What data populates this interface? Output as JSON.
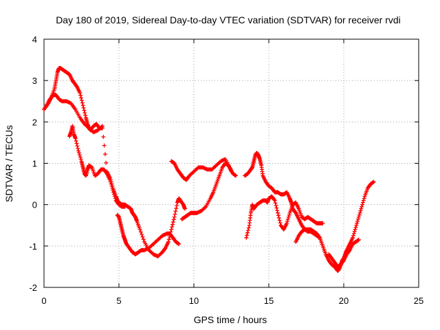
{
  "chart_data": {
    "type": "scatter",
    "title": "Day 180 of 2019, Sidereal Day-to-day VTEC variation (SDTVAR) for receiver rvdi",
    "xlabel": "GPS time / hours",
    "ylabel": "SDTVAR / TECUs",
    "xlim": [
      0,
      25
    ],
    "ylim": [
      -2,
      4
    ],
    "xticks": [
      0,
      5,
      10,
      15,
      20,
      25
    ],
    "yticks": [
      -2,
      -1,
      0,
      1,
      2,
      3,
      4
    ],
    "xtick_labels": [
      "0",
      "5",
      "10",
      "15",
      "20",
      "25"
    ],
    "ytick_labels": [
      "-2",
      "-1",
      "0",
      "1",
      "2",
      "3",
      "4"
    ],
    "grid": true,
    "marker": "+",
    "color": "#ff0000",
    "series": [
      {
        "name": "seg1",
        "x": [
          0.0,
          0.3,
          0.6,
          0.8,
          1.0,
          1.2,
          1.5,
          1.8,
          2.1,
          2.4,
          2.7,
          3.0,
          3.3,
          3.6,
          3.9
        ],
        "y": [
          2.3,
          2.5,
          2.65,
          2.65,
          2.55,
          2.5,
          2.5,
          2.45,
          2.3,
          2.1,
          1.95,
          1.85,
          1.75,
          1.8,
          1.9
        ]
      },
      {
        "name": "seg2",
        "x": [
          0.0,
          0.3,
          0.5,
          0.7,
          0.8,
          0.9,
          1.0,
          1.1,
          1.3,
          1.5,
          1.7,
          1.9,
          2.0,
          2.2,
          2.4,
          2.6,
          2.8,
          2.9,
          3.0,
          3.1,
          3.3,
          3.5,
          3.7,
          3.9,
          4.2,
          4.4,
          4.6,
          4.8,
          4.9,
          5.0,
          5.2,
          5.4,
          5.6,
          5.8,
          5.9,
          6.0,
          6.1,
          6.2,
          6.4,
          6.7,
          7.0,
          7.3,
          7.6,
          7.9,
          8.1,
          8.3,
          8.5,
          8.7,
          8.9,
          9.0,
          9.1,
          9.3,
          9.4
        ],
        "y": [
          2.3,
          2.45,
          2.6,
          2.8,
          3.0,
          3.2,
          3.3,
          3.3,
          3.25,
          3.2,
          3.15,
          3.0,
          2.95,
          2.85,
          2.7,
          2.4,
          2.1,
          1.95,
          1.85,
          1.8,
          1.9,
          1.95,
          1.85,
          1.85,
          0.8,
          0.65,
          0.4,
          0.2,
          0.1,
          0.05,
          0.0,
          0.0,
          -0.05,
          -0.1,
          -0.2,
          -0.25,
          -0.3,
          -0.4,
          -0.6,
          -0.9,
          -1.1,
          -1.2,
          -1.25,
          -1.15,
          -1.05,
          -0.9,
          -0.6,
          -0.3,
          0.05,
          0.15,
          0.1,
          0.0,
          -0.1
        ]
      },
      {
        "name": "seg3",
        "x": [
          1.7,
          1.8,
          1.9,
          2.0,
          2.1,
          2.3,
          2.5,
          2.6,
          2.7,
          2.8,
          2.9,
          3.0,
          3.2,
          3.4,
          3.6,
          3.8,
          4.0,
          4.2,
          4.4,
          4.6,
          4.8,
          5.0,
          5.2,
          5.4
        ],
        "y": [
          1.65,
          1.75,
          1.9,
          1.7,
          1.6,
          1.3,
          1.05,
          0.9,
          0.75,
          0.7,
          0.85,
          0.95,
          0.9,
          0.7,
          0.75,
          0.85,
          0.85,
          0.75,
          0.6,
          0.35,
          0.1,
          0.0,
          -0.05,
          -0.05
        ]
      },
      {
        "name": "seg4",
        "x": [
          4.9,
          5.0,
          5.1,
          5.2,
          5.3,
          5.4,
          5.5,
          5.7,
          5.9,
          6.1,
          6.3,
          6.5,
          6.7,
          7.0,
          7.3,
          7.6,
          7.9,
          8.2,
          8.4,
          8.6,
          8.8,
          9.0
        ],
        "y": [
          -0.25,
          -0.3,
          -0.45,
          -0.6,
          -0.75,
          -0.85,
          -0.95,
          -1.05,
          -1.15,
          -1.2,
          -1.15,
          -1.1,
          -1.1,
          -1.05,
          -0.95,
          -0.85,
          -0.75,
          -0.7,
          -0.7,
          -0.8,
          -0.9,
          -0.95
        ]
      },
      {
        "name": "seg5",
        "x": [
          8.5,
          8.7,
          8.9,
          9.1,
          9.3,
          9.5,
          9.7,
          10.0,
          10.3,
          10.6,
          10.9,
          11.2,
          11.5,
          11.8,
          12.1,
          12.4,
          12.6,
          12.8
        ],
        "y": [
          1.05,
          1.0,
          0.85,
          0.75,
          0.65,
          0.6,
          0.7,
          0.8,
          0.9,
          0.9,
          0.85,
          0.85,
          0.95,
          1.05,
          1.1,
          0.9,
          0.75,
          0.7
        ]
      },
      {
        "name": "seg6",
        "x": [
          9.2,
          9.4,
          9.6,
          9.8,
          10.0,
          10.2,
          10.5,
          10.8,
          11.1,
          11.3,
          11.5,
          11.7,
          11.9,
          12.1,
          12.3,
          12.5
        ],
        "y": [
          -0.35,
          -0.3,
          -0.25,
          -0.2,
          -0.2,
          -0.2,
          -0.15,
          -0.05,
          0.15,
          0.3,
          0.5,
          0.7,
          0.9,
          1.0,
          0.95,
          0.8
        ]
      },
      {
        "name": "seg7",
        "x": [
          13.5,
          13.7,
          13.8,
          13.9,
          14.0,
          14.2,
          14.4,
          14.6,
          14.8,
          14.9,
          15.0,
          15.2,
          15.4,
          15.6,
          15.8,
          16.0,
          16.2,
          16.4,
          16.6,
          16.8,
          17.0,
          17.2,
          17.4,
          17.6,
          17.8,
          18.0,
          18.2,
          18.4,
          18.6
        ],
        "y": [
          -0.8,
          -0.5,
          -0.2,
          0.0,
          -0.1,
          0.0,
          0.05,
          0.1,
          0.1,
          0.05,
          0.15,
          0.2,
          0.1,
          -0.2,
          -0.5,
          -0.6,
          -0.45,
          -0.2,
          0.0,
          0.05,
          -0.1,
          -0.3,
          -0.35,
          -0.3,
          -0.35,
          -0.4,
          -0.45,
          -0.45,
          -0.45
        ]
      },
      {
        "name": "seg8",
        "x": [
          13.4,
          13.6,
          13.8,
          13.9,
          14.0,
          14.1,
          14.2,
          14.3,
          14.4,
          14.5,
          14.6,
          14.8,
          15.0,
          15.2,
          15.4,
          15.6,
          15.8,
          16.0,
          16.2,
          16.4,
          16.5,
          16.6,
          16.8,
          17.0,
          17.2,
          17.4,
          17.6,
          17.8,
          18.0,
          18.2,
          18.4
        ],
        "y": [
          0.7,
          0.75,
          0.85,
          0.9,
          1.05,
          1.2,
          1.25,
          1.2,
          1.1,
          0.95,
          0.7,
          0.55,
          0.45,
          0.4,
          0.3,
          0.3,
          0.25,
          0.25,
          0.3,
          0.15,
          0.05,
          -0.1,
          -0.2,
          -0.35,
          -0.5,
          -0.6,
          -0.65,
          -0.65,
          -0.7,
          -0.75,
          -0.8
        ]
      },
      {
        "name": "seg9",
        "x": [
          16.8,
          17.0,
          17.2,
          17.4,
          17.6,
          17.8,
          18.0,
          18.2,
          18.4,
          18.6,
          18.8,
          19.0,
          19.2,
          19.4,
          19.5,
          19.6,
          19.7,
          19.8,
          19.9,
          20.0,
          20.1,
          20.2,
          20.4,
          20.6,
          20.8,
          21.0,
          21.2,
          21.4,
          21.6,
          21.8,
          22.0
        ],
        "y": [
          -0.9,
          -0.75,
          -0.65,
          -0.6,
          -0.6,
          -0.6,
          -0.65,
          -0.7,
          -0.8,
          -1.0,
          -1.2,
          -1.35,
          -1.45,
          -1.5,
          -1.55,
          -1.6,
          -1.55,
          -1.45,
          -1.35,
          -1.3,
          -1.2,
          -1.1,
          -0.95,
          -0.8,
          -0.55,
          -0.3,
          -0.05,
          0.2,
          0.4,
          0.5,
          0.55
        ]
      },
      {
        "name": "seg10",
        "x": [
          19.0,
          19.2,
          19.4,
          19.6,
          19.8,
          20.0,
          20.2,
          20.4,
          20.6,
          20.8,
          21.0
        ],
        "y": [
          -1.2,
          -1.3,
          -1.4,
          -1.5,
          -1.45,
          -1.35,
          -1.2,
          -1.1,
          -0.95,
          -0.9,
          -0.85
        ]
      }
    ]
  }
}
